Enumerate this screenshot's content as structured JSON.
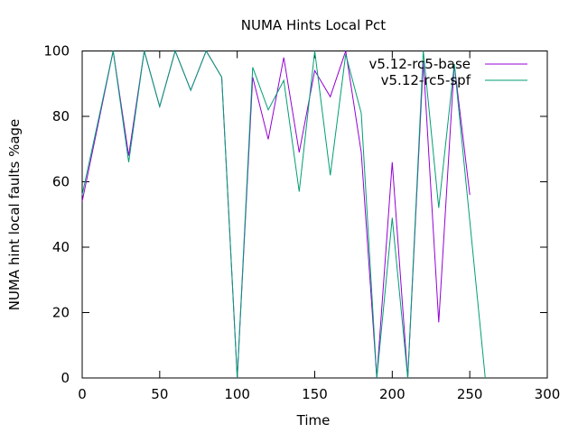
{
  "chart_data": {
    "type": "line",
    "title": "NUMA Hints Local Pct",
    "xlabel": "Time",
    "ylabel": "NUMA hint local faults %age",
    "xlim": [
      0,
      300
    ],
    "ylim": [
      0,
      100
    ],
    "xticks": [
      0,
      50,
      100,
      150,
      200,
      250,
      300
    ],
    "yticks": [
      0,
      20,
      40,
      60,
      80,
      100
    ],
    "grid": false,
    "legend_position": "top-right",
    "series": [
      {
        "name": "v5.12-rc5-base",
        "color": "#9400d3",
        "x": [
          0,
          10,
          20,
          30,
          40,
          50,
          60,
          70,
          80,
          90,
          100,
          110,
          120,
          130,
          140,
          150,
          160,
          170,
          180,
          190,
          200,
          210,
          220,
          230,
          240,
          250
        ],
        "y": [
          54,
          77,
          100,
          68,
          100,
          83,
          100,
          88,
          100,
          92,
          0,
          92,
          73,
          98,
          69,
          94,
          86,
          100,
          69,
          0,
          66,
          0,
          97,
          17,
          96,
          56
        ]
      },
      {
        "name": "v5.12-rc5-spf",
        "color": "#009e73",
        "x": [
          0,
          10,
          20,
          30,
          40,
          50,
          60,
          70,
          80,
          90,
          100,
          110,
          120,
          130,
          140,
          150,
          160,
          170,
          180,
          190,
          200,
          210,
          220,
          230,
          240,
          250,
          260
        ],
        "y": [
          56,
          78,
          100,
          66,
          100,
          83,
          100,
          88,
          100,
          92,
          0,
          95,
          82,
          91,
          57,
          100,
          62,
          99,
          81,
          0,
          49,
          0,
          100,
          52,
          96,
          48,
          0
        ]
      }
    ]
  }
}
